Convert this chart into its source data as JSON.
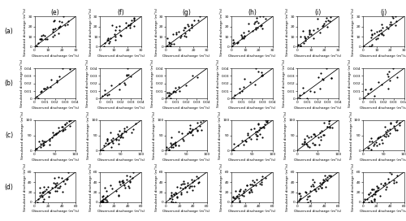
{
  "rows": [
    "(a)",
    "(b)",
    "(c)",
    "(d)"
  ],
  "cols": [
    "(e)",
    "(f)",
    "(g)",
    "(h)",
    "(i)",
    "(j)"
  ],
  "row_ranges": [
    [
      0,
      30
    ],
    [
      0,
      0.04
    ],
    [
      0,
      100
    ],
    [
      0,
      60
    ]
  ],
  "row_ticks": [
    [
      0,
      10,
      20,
      30
    ],
    [
      0,
      0.01,
      0.02,
      0.03,
      0.04
    ],
    [
      0,
      50,
      100
    ],
    [
      0,
      20,
      40,
      60
    ]
  ],
  "row_tick_labels": [
    [
      "0",
      "10",
      "20",
      "30"
    ],
    [
      "0",
      "0.01",
      "0.02",
      "0.03",
      "0.04"
    ],
    [
      "0",
      "50",
      "100"
    ],
    [
      "0",
      "20",
      "40",
      "60"
    ]
  ],
  "xlabel": "Observed discharge (m³/s)",
  "ylabel": "Simulated discharge (m³/s)",
  "point_color": "black",
  "point_size": 2.5,
  "line_color": "black",
  "background": "white",
  "seeds_a": [
    101,
    202,
    303,
    404,
    505,
    606
  ],
  "seeds_b": [
    111,
    222,
    333,
    444,
    555,
    666
  ],
  "seeds_c": [
    121,
    232,
    343,
    454,
    565,
    676
  ],
  "seeds_d": [
    131,
    242,
    353,
    464,
    575,
    686
  ],
  "scatter_a": {
    "xlo": 0.5,
    "xhi": 25,
    "spread": 5,
    "n": 30,
    "bias": 2
  },
  "scatter_b": {
    "xlo": 0.001,
    "xhi": 0.035,
    "spread": 0.006,
    "n": 15,
    "bias": 0.002
  },
  "scatter_c": {
    "xlo": 1,
    "xhi": 90,
    "spread": 12,
    "n": 35,
    "bias": 3
  },
  "scatter_d": {
    "xlo": 1,
    "xhi": 50,
    "spread": 8,
    "n": 40,
    "bias": 2
  }
}
